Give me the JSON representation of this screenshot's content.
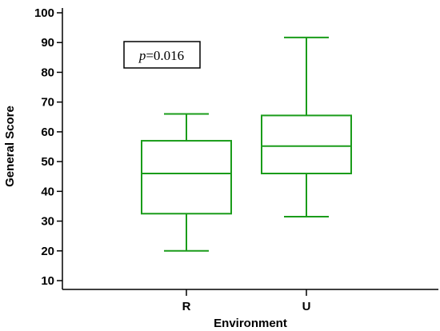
{
  "chart_data": {
    "type": "box",
    "title": "",
    "xlabel": "Environment",
    "ylabel": "General Score",
    "ylim": [
      7,
      100
    ],
    "yticks": [
      10,
      20,
      30,
      40,
      50,
      60,
      70,
      80,
      90,
      100
    ],
    "grid": false,
    "categories": [
      "R",
      "U"
    ],
    "box_color": "#1a9c1a",
    "boxes": [
      {
        "category": "R",
        "min": 20,
        "q1": 32.5,
        "median": 46,
        "q3": 57,
        "max": 66
      },
      {
        "category": "U",
        "min": 31.5,
        "q1": 46,
        "median": 55.2,
        "q3": 65.5,
        "max": 91.7
      }
    ],
    "annotation": {
      "italic_part": "p",
      "rest": "=0.016"
    }
  }
}
